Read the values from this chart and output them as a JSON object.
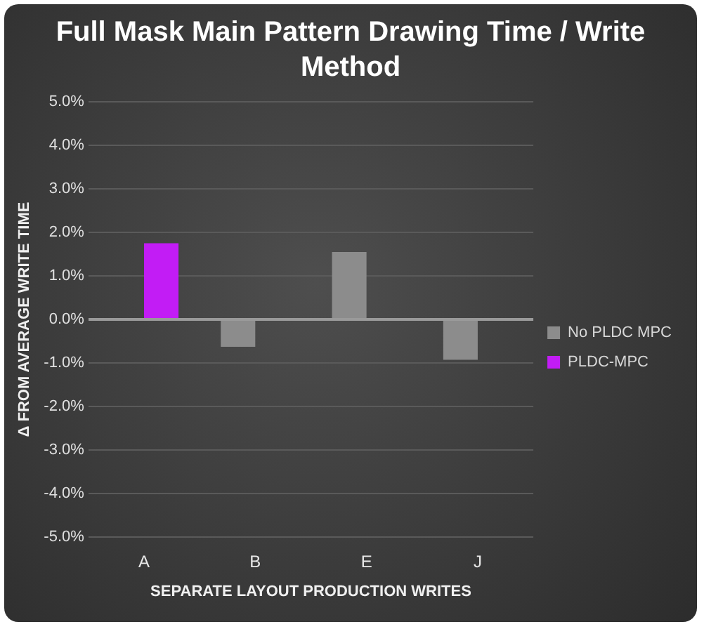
{
  "chart_data": {
    "type": "bar",
    "title": "Full Mask Main Pattern Drawing Time / Write Method",
    "xlabel": "SEPARATE LAYOUT PRODUCTION WRITES",
    "ylabel": "Δ FROM AVERAGE WRITE TIME",
    "categories": [
      "A",
      "B",
      "E",
      "J"
    ],
    "series": [
      {
        "name": "No PLDC MPC",
        "color": "#8c8c8c",
        "values": [
          null,
          -0.63,
          1.55,
          -0.93
        ]
      },
      {
        "name": "PLDC-MPC",
        "color": "#c21cf5",
        "values": [
          1.75,
          null,
          null,
          null
        ]
      }
    ],
    "ylim": [
      -5,
      5
    ],
    "yticks": [
      {
        "value": -5,
        "label": "-5.0%"
      },
      {
        "value": -4,
        "label": "-4.0%"
      },
      {
        "value": -3,
        "label": "-3.0%"
      },
      {
        "value": -2,
        "label": "-2.0%"
      },
      {
        "value": -1,
        "label": "-1.0%"
      },
      {
        "value": 0,
        "label": "0.0%"
      },
      {
        "value": 1,
        "label": "1.0%"
      },
      {
        "value": 2,
        "label": "2.0%"
      },
      {
        "value": 3,
        "label": "3.0%"
      },
      {
        "value": 4,
        "label": "4.0%"
      },
      {
        "value": 5,
        "label": "5.0%"
      }
    ],
    "grid": "y",
    "legend": "right"
  }
}
